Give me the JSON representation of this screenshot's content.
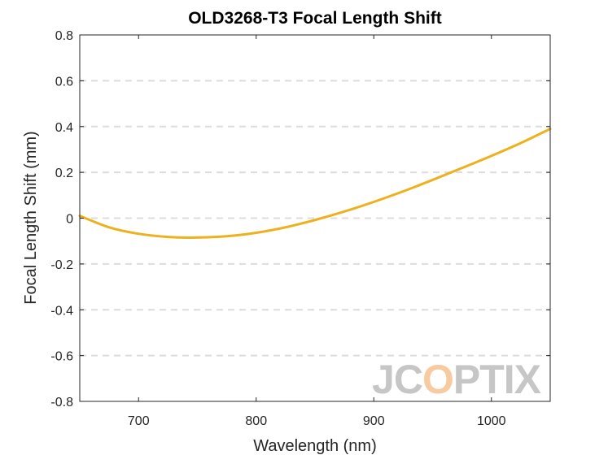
{
  "chart_data": {
    "type": "line",
    "title": "OLD3268-T3 Focal Length Shift",
    "xlabel": "Wavelength (nm)",
    "ylabel": "Focal Length Shift (mm)",
    "xlim": [
      650,
      1050
    ],
    "ylim": [
      -0.8,
      0.8
    ],
    "xticks": [
      700,
      800,
      900,
      1000
    ],
    "yticks": [
      -0.8,
      -0.6,
      -0.4,
      -0.2,
      0,
      0.2,
      0.4,
      0.6,
      0.8
    ],
    "xtick_labels": [
      "700",
      "800",
      "900",
      "1000"
    ],
    "ytick_labels": [
      "-0.8",
      "-0.6",
      "-0.4",
      "-0.2",
      "0",
      "0.2",
      "0.4",
      "0.6",
      "0.8"
    ],
    "grid": "horizontal dashed",
    "series": [
      {
        "color": "#EDB120",
        "x": [
          650,
          675,
          700,
          725,
          745,
          775,
          800,
          825,
          850,
          875,
          900,
          925,
          950,
          975,
          1000,
          1025,
          1050
        ],
        "y": [
          0.01,
          -0.04,
          -0.068,
          -0.082,
          -0.085,
          -0.079,
          -0.064,
          -0.04,
          -0.008,
          0.029,
          0.071,
          0.117,
          0.167,
          0.219,
          0.272,
          0.328,
          0.39
        ]
      }
    ]
  },
  "logo": {
    "text": "JCOPTIX",
    "gray": "#c6c6c6",
    "accent": "#f7caa0"
  }
}
